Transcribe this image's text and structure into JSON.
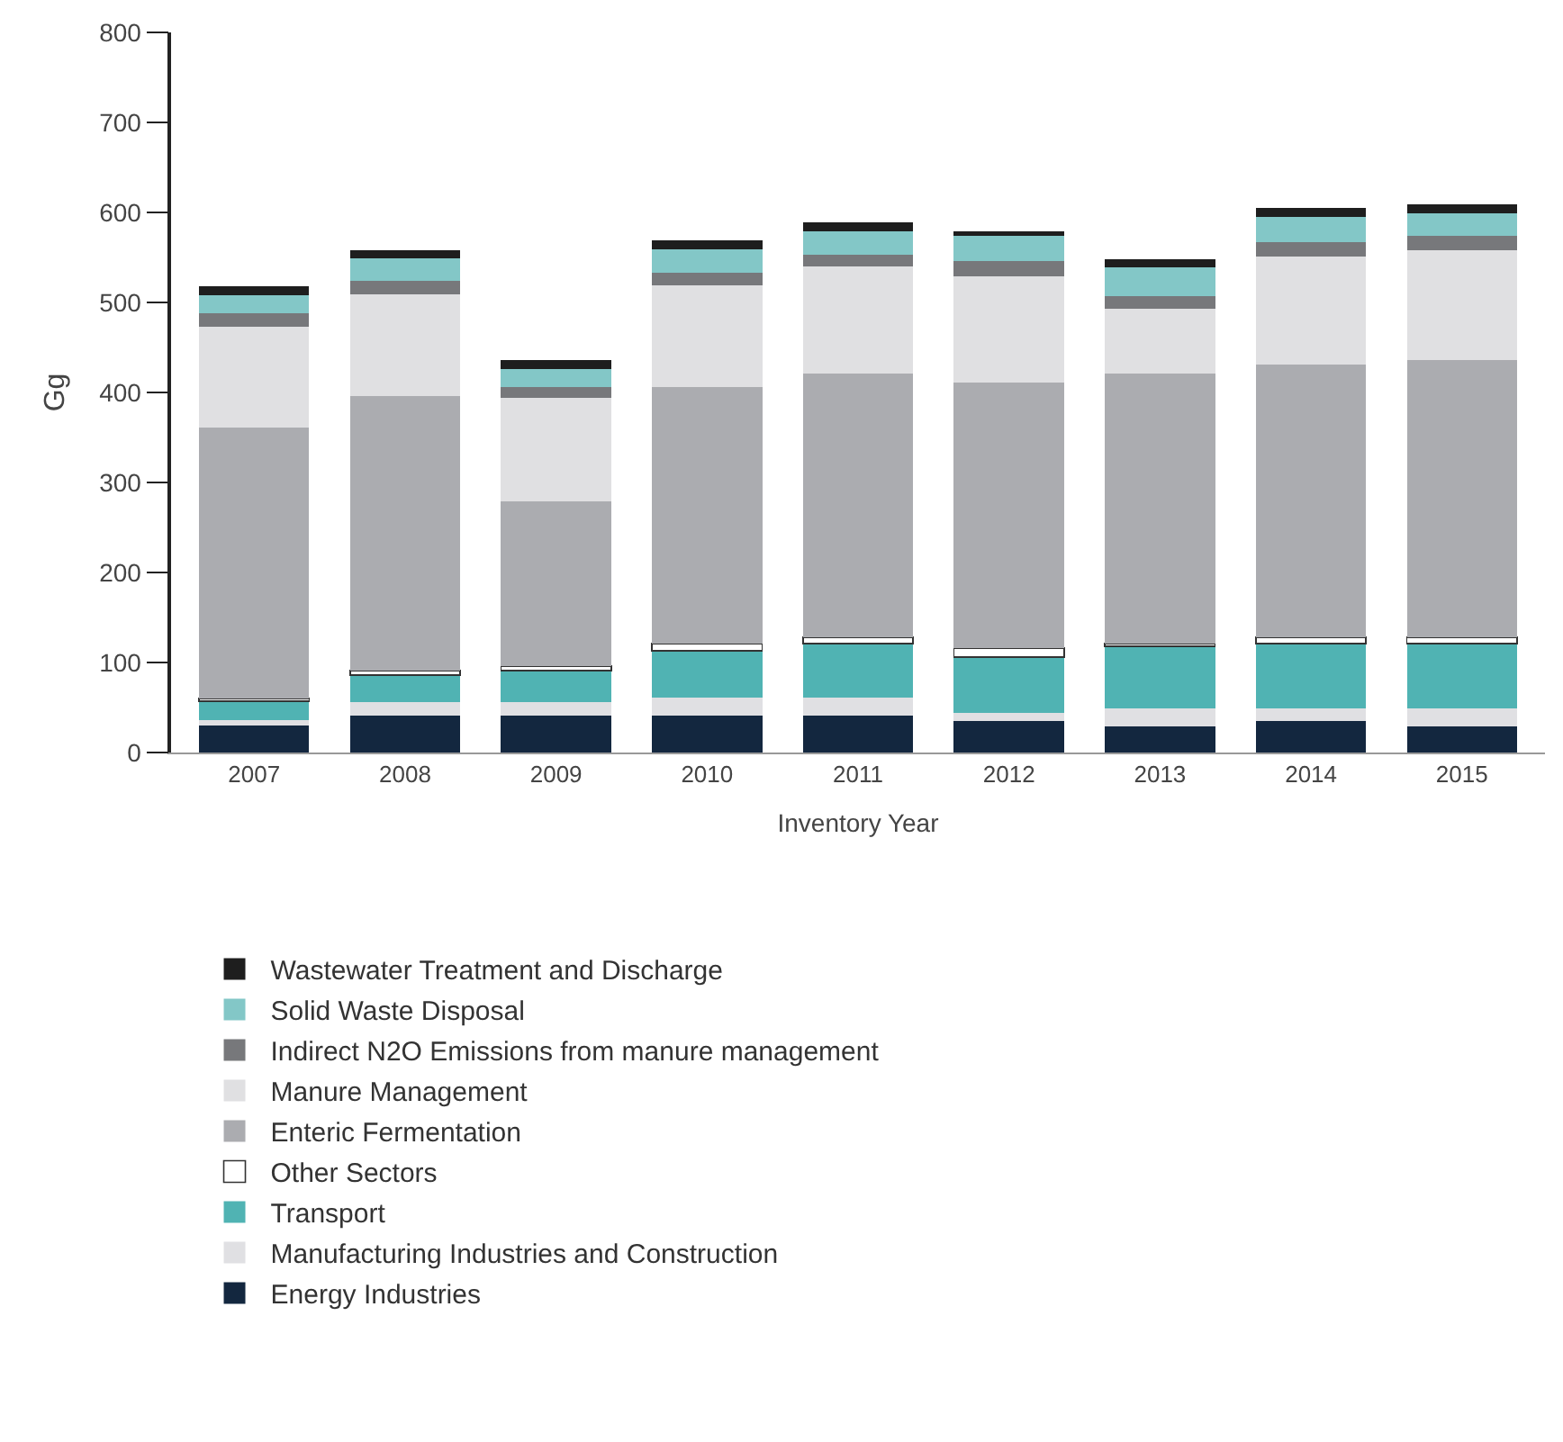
{
  "chart_data": {
    "type": "bar",
    "stacked": true,
    "xlabel": "Inventory Year",
    "ylabel": "Gg",
    "categories": [
      "2007",
      "2008",
      "2009",
      "2010",
      "2011",
      "2012",
      "2013",
      "2014",
      "2015"
    ],
    "ylim": [
      0,
      800
    ],
    "yticks": [
      0,
      100,
      200,
      300,
      400,
      500,
      600,
      700,
      800
    ],
    "legend": "bottom",
    "series": [
      {
        "name": "Energy Industries",
        "color": "#13273f",
        "values": [
          30,
          41,
          41,
          41,
          41,
          35,
          29,
          35,
          29
        ]
      },
      {
        "name": "Manufacturing Industries and Construction",
        "color": "#e0e0e3",
        "values": [
          6,
          15,
          15,
          20,
          20,
          9,
          20,
          14,
          20
        ]
      },
      {
        "name": "Transport",
        "color": "#50b3b3",
        "values": [
          21,
          30,
          35,
          52,
          60,
          62,
          69,
          72,
          72
        ]
      },
      {
        "name": "Other Sectors",
        "color": "#ffffff",
        "values": [
          3,
          5,
          5,
          8,
          7,
          10,
          3,
          7,
          7
        ]
      },
      {
        "name": "Enteric Fermentation",
        "color": "#abacb0",
        "values": [
          301,
          305,
          183,
          285,
          293,
          295,
          300,
          303,
          308
        ]
      },
      {
        "name": "Manure Management",
        "color": "#e0e0e2",
        "values": [
          112,
          113,
          115,
          113,
          119,
          118,
          72,
          120,
          122
        ]
      },
      {
        "name": "Indirect N2O Emissions from manure management",
        "color": "#77787b",
        "values": [
          15,
          15,
          12,
          14,
          13,
          17,
          14,
          16,
          16
        ]
      },
      {
        "name": "Solid Waste Disposal",
        "color": "#83c7c7",
        "values": [
          20,
          25,
          20,
          26,
          26,
          28,
          32,
          28,
          25
        ]
      },
      {
        "name": "Wastewater Treatment and Discharge",
        "color": "#1e1e1e",
        "values": [
          10,
          9,
          10,
          10,
          10,
          5,
          9,
          10,
          10
        ]
      }
    ]
  }
}
